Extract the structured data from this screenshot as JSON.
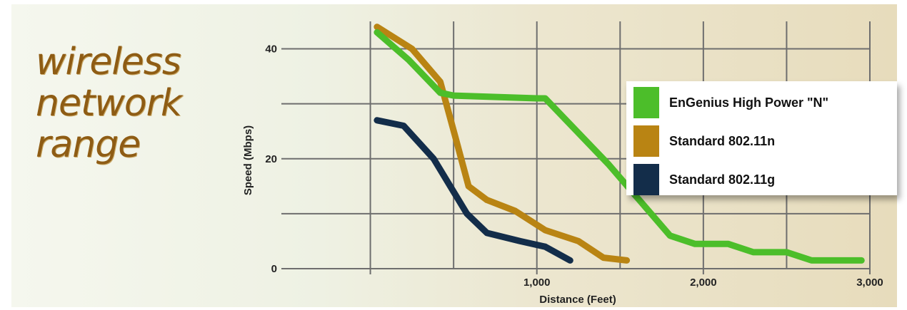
{
  "headline": [
    "wireless",
    "network",
    "range"
  ],
  "colors": {
    "engenius": "#4cbe2a",
    "std_n": "#b98413",
    "std_g": "#132d4a",
    "headline": "#8e5c14"
  },
  "chart_data": {
    "type": "line",
    "xlabel": "Distance (Feet)",
    "ylabel": "Speed (Mbps)",
    "xlim": [
      -500,
      3000
    ],
    "ylim": [
      0,
      45
    ],
    "x_ticks": [
      1000,
      2000,
      3000
    ],
    "x_tick_labels": [
      "1,000",
      "2,000",
      "3,000"
    ],
    "y_ticks": [
      0,
      20,
      40
    ],
    "y_tick_labels": [
      "0",
      "20",
      "40"
    ],
    "grid": true,
    "legend_position": "right",
    "series": [
      {
        "name": "EnGenius High Power \"N\"",
        "color": "#4cbe2a",
        "points": [
          [
            40,
            43
          ],
          [
            230,
            38
          ],
          [
            420,
            32
          ],
          [
            500,
            31.5
          ],
          [
            1000,
            31
          ],
          [
            1050,
            31
          ],
          [
            1430,
            19
          ],
          [
            1800,
            6
          ],
          [
            1950,
            4.5
          ],
          [
            2150,
            4.5
          ],
          [
            2300,
            3
          ],
          [
            2500,
            3
          ],
          [
            2650,
            1.5
          ],
          [
            2950,
            1.5
          ]
        ]
      },
      {
        "name": "Standard 802.11n",
        "color": "#b98413",
        "points": [
          [
            40,
            44
          ],
          [
            250,
            40
          ],
          [
            420,
            34
          ],
          [
            510,
            24
          ],
          [
            590,
            15
          ],
          [
            700,
            12.5
          ],
          [
            870,
            10.5
          ],
          [
            1050,
            7
          ],
          [
            1250,
            5
          ],
          [
            1400,
            2
          ],
          [
            1540,
            1.5
          ]
        ]
      },
      {
        "name": "Standard 802.11g",
        "color": "#132d4a",
        "points": [
          [
            40,
            27
          ],
          [
            200,
            26
          ],
          [
            380,
            20
          ],
          [
            500,
            14
          ],
          [
            580,
            10
          ],
          [
            700,
            6.5
          ],
          [
            900,
            5
          ],
          [
            1050,
            4
          ],
          [
            1200,
            1.5
          ]
        ]
      }
    ]
  }
}
